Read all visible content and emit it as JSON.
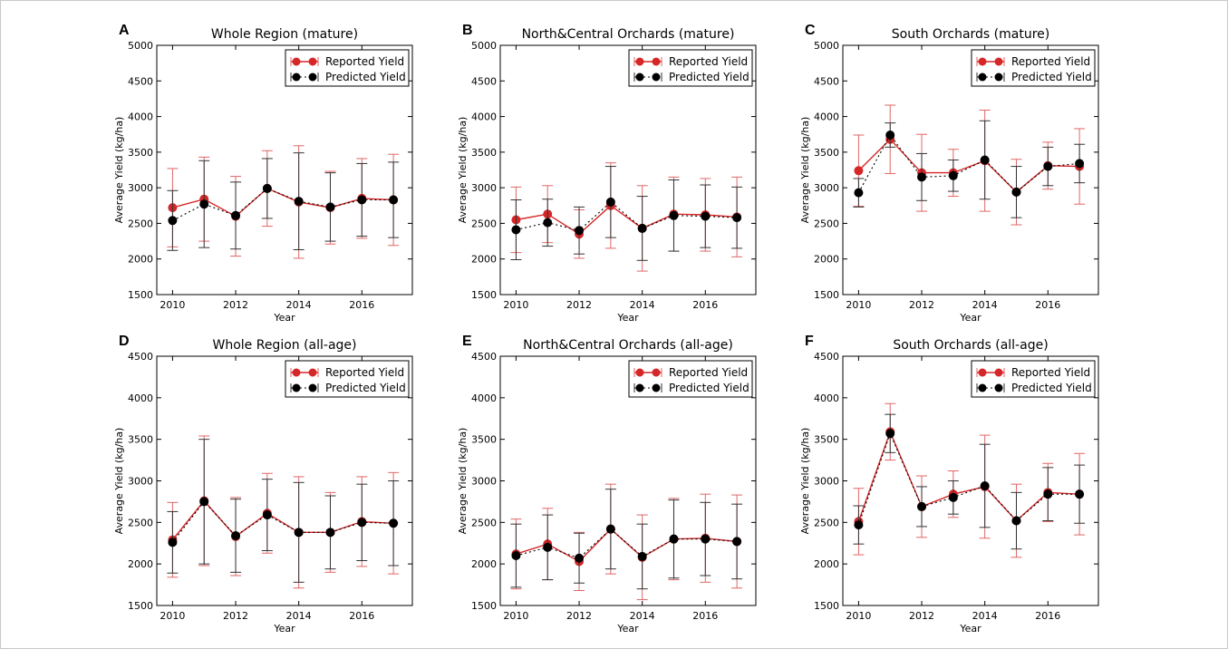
{
  "legend": {
    "reported": "Reported Yield",
    "predicted": "Predicted Yield"
  },
  "colors": {
    "reported": "#d62728",
    "predicted": "#000000",
    "reported_err": "#e06666",
    "predicted_err": "#333333"
  },
  "chart_data": [
    {
      "panel": "A",
      "title": "Whole Region (mature)",
      "type": "line",
      "xlabel": "Year",
      "ylabel": "Average Yield (kg/ha)",
      "xlim": [
        2009.5,
        2017.6
      ],
      "ylim": [
        1500,
        5000
      ],
      "xticks": [
        2010,
        2012,
        2014,
        2016
      ],
      "yticks": [
        1500,
        2000,
        2500,
        3000,
        3500,
        4000,
        4500,
        5000
      ],
      "legend_position": "top-right",
      "x": [
        2010,
        2011,
        2012,
        2013,
        2014,
        2015,
        2016,
        2017
      ],
      "series": [
        {
          "name": "Reported Yield",
          "values": [
            2720,
            2840,
            2600,
            2990,
            2800,
            2720,
            2850,
            2830
          ],
          "err": [
            550,
            590,
            560,
            530,
            790,
            510,
            560,
            640
          ]
        },
        {
          "name": "Predicted Yield",
          "values": [
            2540,
            2770,
            2610,
            2990,
            2810,
            2730,
            2830,
            2830
          ],
          "err": [
            420,
            610,
            470,
            420,
            680,
            480,
            510,
            530
          ]
        }
      ]
    },
    {
      "panel": "B",
      "title": "North&Central Orchards (mature)",
      "type": "line",
      "xlabel": "Year",
      "ylabel": "Average Yield (kg/ha)",
      "xlim": [
        2009.5,
        2017.6
      ],
      "ylim": [
        1500,
        5000
      ],
      "xticks": [
        2010,
        2012,
        2014,
        2016
      ],
      "yticks": [
        1500,
        2000,
        2500,
        3000,
        3500,
        4000,
        4500,
        5000
      ],
      "legend_position": "top-right",
      "x": [
        2010,
        2011,
        2012,
        2013,
        2014,
        2015,
        2016,
        2017
      ],
      "series": [
        {
          "name": "Reported Yield",
          "values": [
            2550,
            2630,
            2350,
            2750,
            2430,
            2630,
            2620,
            2590
          ],
          "err": [
            460,
            400,
            340,
            600,
            600,
            520,
            510,
            560
          ]
        },
        {
          "name": "Predicted Yield",
          "values": [
            2410,
            2510,
            2400,
            2800,
            2430,
            2610,
            2600,
            2580
          ],
          "err": [
            420,
            330,
            330,
            500,
            450,
            500,
            440,
            430
          ]
        }
      ]
    },
    {
      "panel": "C",
      "title": "South Orchards (mature)",
      "type": "line",
      "xlabel": "Year",
      "ylabel": "Average Yield (kg/ha)",
      "xlim": [
        2009.5,
        2017.6
      ],
      "ylim": [
        1500,
        5000
      ],
      "xticks": [
        2010,
        2012,
        2014,
        2016
      ],
      "yticks": [
        1500,
        2000,
        2500,
        3000,
        3500,
        4000,
        4500,
        5000
      ],
      "legend_position": "top-right",
      "x": [
        2010,
        2011,
        2012,
        2013,
        2014,
        2015,
        2016,
        2017
      ],
      "series": [
        {
          "name": "Reported Yield",
          "values": [
            3240,
            3680,
            3210,
            3210,
            3380,
            2940,
            3310,
            3300
          ],
          "err": [
            500,
            480,
            540,
            330,
            710,
            460,
            330,
            530
          ]
        },
        {
          "name": "Predicted Yield",
          "values": [
            2930,
            3740,
            3150,
            3170,
            3390,
            2940,
            3300,
            3340
          ],
          "err": [
            200,
            170,
            330,
            220,
            550,
            360,
            270,
            270
          ]
        }
      ]
    },
    {
      "panel": "D",
      "title": "Whole Region (all-age)",
      "type": "line",
      "xlabel": "Year",
      "ylabel": "Average Yield (kg/ha)",
      "xlim": [
        2009.5,
        2017.6
      ],
      "ylim": [
        1500,
        4500
      ],
      "xticks": [
        2010,
        2012,
        2014,
        2016
      ],
      "yticks": [
        1500,
        2000,
        2500,
        3000,
        3500,
        4000,
        4500
      ],
      "legend_position": "top-right",
      "x": [
        2010,
        2011,
        2012,
        2013,
        2014,
        2015,
        2016,
        2017
      ],
      "series": [
        {
          "name": "Reported Yield",
          "values": [
            2290,
            2760,
            2330,
            2610,
            2380,
            2380,
            2510,
            2490
          ],
          "err": [
            450,
            780,
            470,
            480,
            670,
            480,
            540,
            610
          ]
        },
        {
          "name": "Predicted Yield",
          "values": [
            2260,
            2750,
            2340,
            2590,
            2380,
            2380,
            2500,
            2490
          ],
          "err": [
            370,
            750,
            440,
            430,
            600,
            440,
            460,
            510
          ]
        }
      ]
    },
    {
      "panel": "E",
      "title": "North&Central Orchards (all-age)",
      "type": "line",
      "xlabel": "Year",
      "ylabel": "Average Yield (kg/ha)",
      "xlim": [
        2009.5,
        2017.6
      ],
      "ylim": [
        1500,
        4500
      ],
      "xticks": [
        2010,
        2012,
        2014,
        2016
      ],
      "yticks": [
        1500,
        2000,
        2500,
        3000,
        3500,
        4000,
        4500
      ],
      "legend_position": "top-right",
      "x": [
        2010,
        2011,
        2012,
        2013,
        2014,
        2015,
        2016,
        2017
      ],
      "series": [
        {
          "name": "Reported Yield",
          "values": [
            2120,
            2240,
            2030,
            2420,
            2080,
            2300,
            2310,
            2270
          ],
          "err": [
            420,
            430,
            350,
            540,
            510,
            490,
            530,
            560
          ]
        },
        {
          "name": "Predicted Yield",
          "values": [
            2100,
            2200,
            2070,
            2420,
            2090,
            2300,
            2300,
            2270
          ],
          "err": [
            380,
            390,
            300,
            480,
            390,
            470,
            440,
            450
          ]
        }
      ]
    },
    {
      "panel": "F",
      "title": "South Orchards (all-age)",
      "type": "line",
      "xlabel": "Year",
      "ylabel": "Average Yield (kg/ha)",
      "xlim": [
        2009.5,
        2017.6
      ],
      "ylim": [
        1500,
        4500
      ],
      "xticks": [
        2010,
        2012,
        2014,
        2016
      ],
      "yticks": [
        1500,
        2000,
        2500,
        3000,
        3500,
        4000,
        4500
      ],
      "legend_position": "top-right",
      "x": [
        2010,
        2011,
        2012,
        2013,
        2014,
        2015,
        2016,
        2017
      ],
      "series": [
        {
          "name": "Reported Yield",
          "values": [
            2510,
            3590,
            2690,
            2840,
            2930,
            2520,
            2860,
            2840
          ],
          "err": [
            400,
            340,
            370,
            280,
            620,
            440,
            350,
            490
          ]
        },
        {
          "name": "Predicted Yield",
          "values": [
            2470,
            3570,
            2690,
            2800,
            2940,
            2520,
            2840,
            2840
          ],
          "err": [
            230,
            230,
            240,
            200,
            500,
            340,
            320,
            350
          ]
        }
      ]
    }
  ]
}
